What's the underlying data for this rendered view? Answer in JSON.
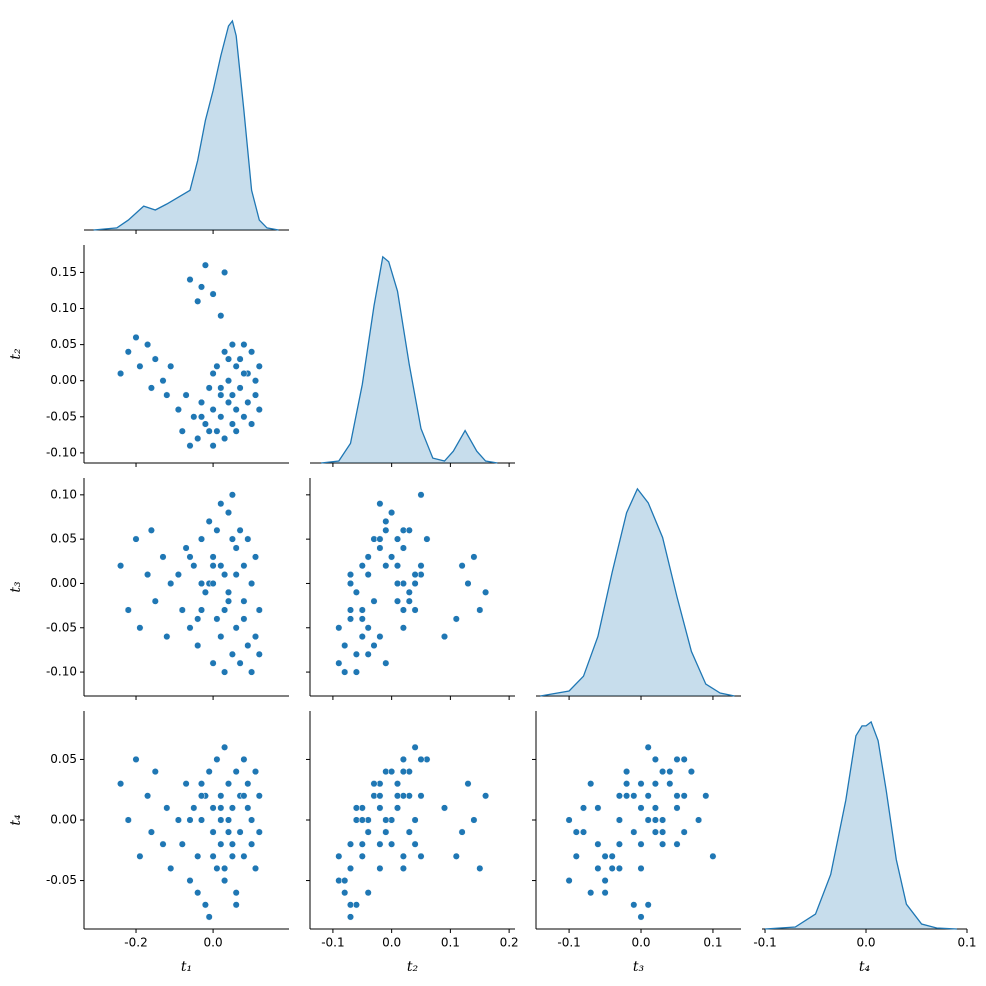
{
  "chart_data": {
    "type": "pairplot",
    "corner": true,
    "color": "#1f77b4",
    "variables": [
      {
        "label": "t₁",
        "values": [
          -0.24,
          -0.22,
          -0.2,
          -0.19,
          -0.17,
          -0.16,
          -0.15,
          -0.13,
          -0.12,
          -0.11,
          -0.06,
          -0.04,
          -0.02,
          0.0,
          0.02,
          0.03,
          -0.03,
          -0.09,
          -0.08,
          -0.07,
          -0.06,
          -0.05,
          -0.04,
          -0.03,
          -0.02,
          -0.01,
          0.0,
          0.0,
          0.01,
          0.01,
          0.02,
          0.02,
          0.03,
          0.03,
          0.04,
          0.04,
          0.05,
          0.05,
          0.06,
          0.06,
          0.07,
          0.07,
          0.08,
          0.08,
          0.09,
          0.09,
          0.1,
          0.1,
          0.11,
          0.11,
          0.12,
          0.12,
          -0.01,
          0.02,
          0.04,
          0.06,
          -0.03,
          0.08,
          0.0,
          0.05
        ],
        "xlim": [
          -0.335,
          0.197
        ],
        "xticks": [
          -0.2,
          {
            "value": 0,
            "label": "0.0"
          }
        ],
        "kde": {
          "x": [
            -0.31,
            -0.25,
            -0.22,
            -0.18,
            -0.15,
            -0.12,
            -0.09,
            -0.06,
            -0.04,
            -0.02,
            0.0,
            0.02,
            0.04,
            0.05,
            0.06,
            0.08,
            0.1,
            0.12,
            0.14,
            0.17
          ],
          "density": [
            0,
            0.07,
            0.33,
            0.8,
            0.67,
            0.87,
            1.1,
            1.33,
            2.33,
            3.67,
            4.67,
            5.83,
            6.83,
            7.0,
            6.5,
            4.0,
            1.33,
            0.33,
            0.07,
            0
          ],
          "ylim": [
            0,
            7.3
          ]
        }
      },
      {
        "label": "t₂",
        "values": [
          0.01,
          0.04,
          0.06,
          0.02,
          0.05,
          -0.01,
          0.03,
          0.0,
          -0.02,
          0.02,
          0.14,
          0.11,
          0.16,
          0.12,
          0.09,
          0.15,
          0.13,
          -0.04,
          -0.07,
          -0.02,
          -0.09,
          -0.05,
          -0.08,
          -0.03,
          -0.06,
          -0.01,
          -0.09,
          -0.04,
          0.02,
          -0.07,
          -0.02,
          -0.05,
          0.04,
          -0.08,
          0.0,
          -0.03,
          0.05,
          -0.06,
          0.02,
          -0.04,
          0.03,
          -0.01,
          0.05,
          -0.05,
          0.01,
          -0.03,
          0.04,
          -0.06,
          0.0,
          -0.02,
          0.02,
          -0.04,
          -0.07,
          -0.01,
          0.03,
          -0.07,
          -0.05,
          0.01,
          0.01,
          -0.02
        ],
        "xlim": [
          -0.139,
          0.21
        ],
        "xticks": [
          -0.1,
          {
            "value": 0,
            "label": "0.0"
          },
          0.1,
          0.2
        ],
        "ylim": [
          -0.114,
          0.188
        ],
        "yticks": [
          {
            "value": -0.1,
            "label": "-0.10"
          },
          -0.05,
          {
            "value": 0,
            "label": "0.00"
          },
          0.05,
          {
            "value": 0.1,
            "label": "0.10"
          },
          0.15
        ],
        "kde": {
          "x": [
            -0.12,
            -0.09,
            -0.07,
            -0.05,
            -0.03,
            -0.015,
            -0.005,
            0.01,
            0.03,
            0.05,
            0.07,
            0.09,
            0.105,
            0.125,
            0.145,
            0.16,
            0.18
          ],
          "density": [
            0,
            0.1,
            1.0,
            4.0,
            8.0,
            10.5,
            10.25,
            8.75,
            5.0,
            1.75,
            0.25,
            0.1,
            0.6,
            1.65,
            0.6,
            0.1,
            0
          ],
          "ylim": [
            0,
            11.1
          ]
        }
      },
      {
        "label": "t₃",
        "values": [
          0.02,
          -0.03,
          0.05,
          -0.05,
          0.01,
          0.06,
          -0.02,
          0.03,
          -0.06,
          0.0,
          0.03,
          -0.04,
          -0.01,
          0.02,
          -0.06,
          -0.03,
          0.0,
          0.01,
          -0.03,
          0.04,
          -0.05,
          0.02,
          -0.07,
          0.05,
          -0.01,
          0.07,
          -0.09,
          0.03,
          0.06,
          -0.04,
          0.09,
          -0.06,
          0.01,
          -0.1,
          0.08,
          -0.02,
          0.1,
          -0.08,
          0.04,
          -0.05,
          0.06,
          -0.09,
          0.02,
          -0.04,
          0.05,
          -0.07,
          0.0,
          -0.1,
          0.03,
          -0.06,
          -0.03,
          -0.08,
          0.0,
          0.02,
          -0.01,
          0.01,
          -0.03,
          -0.02,
          0.0,
          0.05
        ],
        "xlim": [
          -0.146,
          0.139
        ],
        "xticks": [
          -0.1,
          {
            "value": 0,
            "label": "0.0"
          },
          0.1
        ],
        "ylim": [
          -0.127,
          0.119
        ],
        "yticks": [
          {
            "value": -0.1,
            "label": "-0.10"
          },
          -0.05,
          {
            "value": 0,
            "label": "0.00"
          },
          0.05,
          {
            "value": 0.1,
            "label": "0.10"
          }
        ],
        "kde": {
          "x": [
            -0.14,
            -0.1,
            -0.08,
            -0.06,
            -0.04,
            -0.02,
            -0.005,
            0.01,
            0.03,
            0.05,
            0.07,
            0.09,
            0.11,
            0.13
          ],
          "density": [
            0,
            0.2,
            0.8,
            2.4,
            5.0,
            7.4,
            8.36,
            7.8,
            6.4,
            4.0,
            1.8,
            0.48,
            0.12,
            0
          ],
          "ylim": [
            0,
            8.8
          ]
        }
      },
      {
        "label": "t₄",
        "values": [
          0.03,
          0.0,
          0.05,
          -0.03,
          0.02,
          -0.01,
          0.04,
          -0.02,
          0.01,
          -0.04,
          0.0,
          -0.03,
          0.02,
          -0.01,
          0.01,
          -0.04,
          0.03,
          0.0,
          -0.02,
          0.03,
          -0.05,
          0.01,
          -0.06,
          0.02,
          -0.07,
          0.04,
          -0.03,
          -0.01,
          0.05,
          -0.04,
          0.02,
          -0.02,
          0.06,
          -0.05,
          0.0,
          0.03,
          -0.03,
          0.01,
          0.04,
          -0.06,
          0.02,
          -0.01,
          0.05,
          -0.03,
          0.01,
          0.03,
          -0.02,
          0.0,
          0.04,
          -0.04,
          0.02,
          -0.01,
          -0.08,
          0.0,
          -0.01,
          -0.07,
          0.0,
          0.02,
          0.01,
          -0.02
        ],
        "xlim": [
          -0.103,
          0.1
        ],
        "xticks": [
          -0.1,
          {
            "value": 0,
            "label": "0.0"
          },
          0.1
        ],
        "ylim": [
          -0.09,
          0.09
        ],
        "yticks": [
          -0.05,
          {
            "value": 0,
            "label": "0.00"
          },
          0.05
        ],
        "kde": {
          "x": [
            -0.1,
            -0.07,
            -0.05,
            -0.035,
            -0.02,
            -0.01,
            -0.004,
            0.0,
            0.005,
            0.012,
            0.02,
            0.03,
            0.04,
            0.055,
            0.07,
            0.09
          ],
          "density": [
            0,
            0.1,
            0.75,
            2.75,
            6.5,
            9.75,
            10.25,
            10.25,
            10.45,
            9.5,
            7.0,
            3.5,
            1.25,
            0.25,
            0.05,
            0
          ],
          "ylim": [
            0,
            11.0
          ]
        }
      }
    ]
  }
}
